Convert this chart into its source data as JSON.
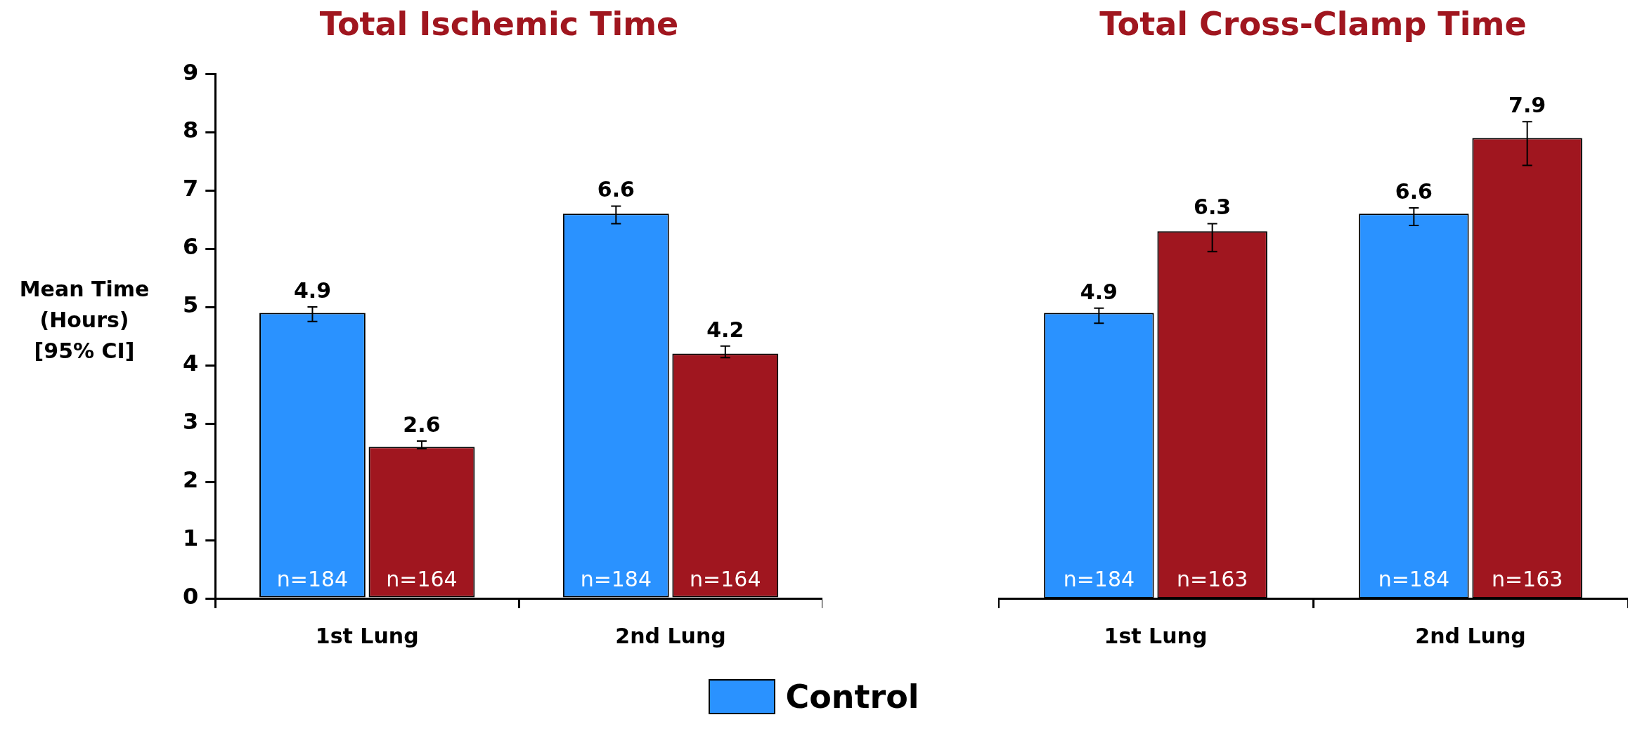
{
  "chart_data": [
    {
      "type": "bar",
      "title": "Total Ischemic Time",
      "ylabel": "Mean Time\n(Hours)\n[95% CI]",
      "categories": [
        "1st Lung",
        "2nd Lung"
      ],
      "series": [
        {
          "name": "Control",
          "color": "#2a92ff",
          "values": [
            4.9,
            6.6
          ],
          "errors": [
            [
              4.75,
              5.0
            ],
            [
              6.43,
              6.73
            ]
          ]
        },
        {
          "color": "#a0161f",
          "values": [
            2.6,
            4.2
          ],
          "errors": [
            [
              2.57,
              2.7
            ],
            [
              4.13,
              4.33
            ]
          ]
        }
      ],
      "ylim": [
        0,
        9
      ],
      "yticks": [
        0,
        1,
        2,
        3,
        4,
        5,
        6,
        7,
        8,
        9
      ],
      "data_labels": true,
      "legend": "bottom",
      "annotations": [
        "n=184",
        "n=164",
        "n=184",
        "n=164"
      ]
    },
    {
      "type": "bar",
      "title": "Total Cross-Clamp Time",
      "categories": [
        "1st Lung",
        "2nd Lung"
      ],
      "series": [
        {
          "color": "#2a92ff",
          "values": [
            4.9,
            6.6
          ],
          "errors": [
            [
              4.72,
              4.98
            ],
            [
              6.4,
              6.7
            ]
          ]
        },
        {
          "color": "#a0161f",
          "values": [
            6.3,
            7.9
          ],
          "errors": [
            [
              5.95,
              6.43
            ],
            [
              7.43,
              8.18
            ]
          ]
        }
      ],
      "ylim": [
        0,
        9
      ],
      "yticks": [
        0,
        1,
        2,
        3,
        4,
        5,
        6,
        7,
        8,
        9
      ],
      "data_labels": true,
      "tick_labels": "x",
      "annotations": [
        "n=184",
        "n=163",
        "n=184",
        "n=163"
      ]
    }
  ]
}
